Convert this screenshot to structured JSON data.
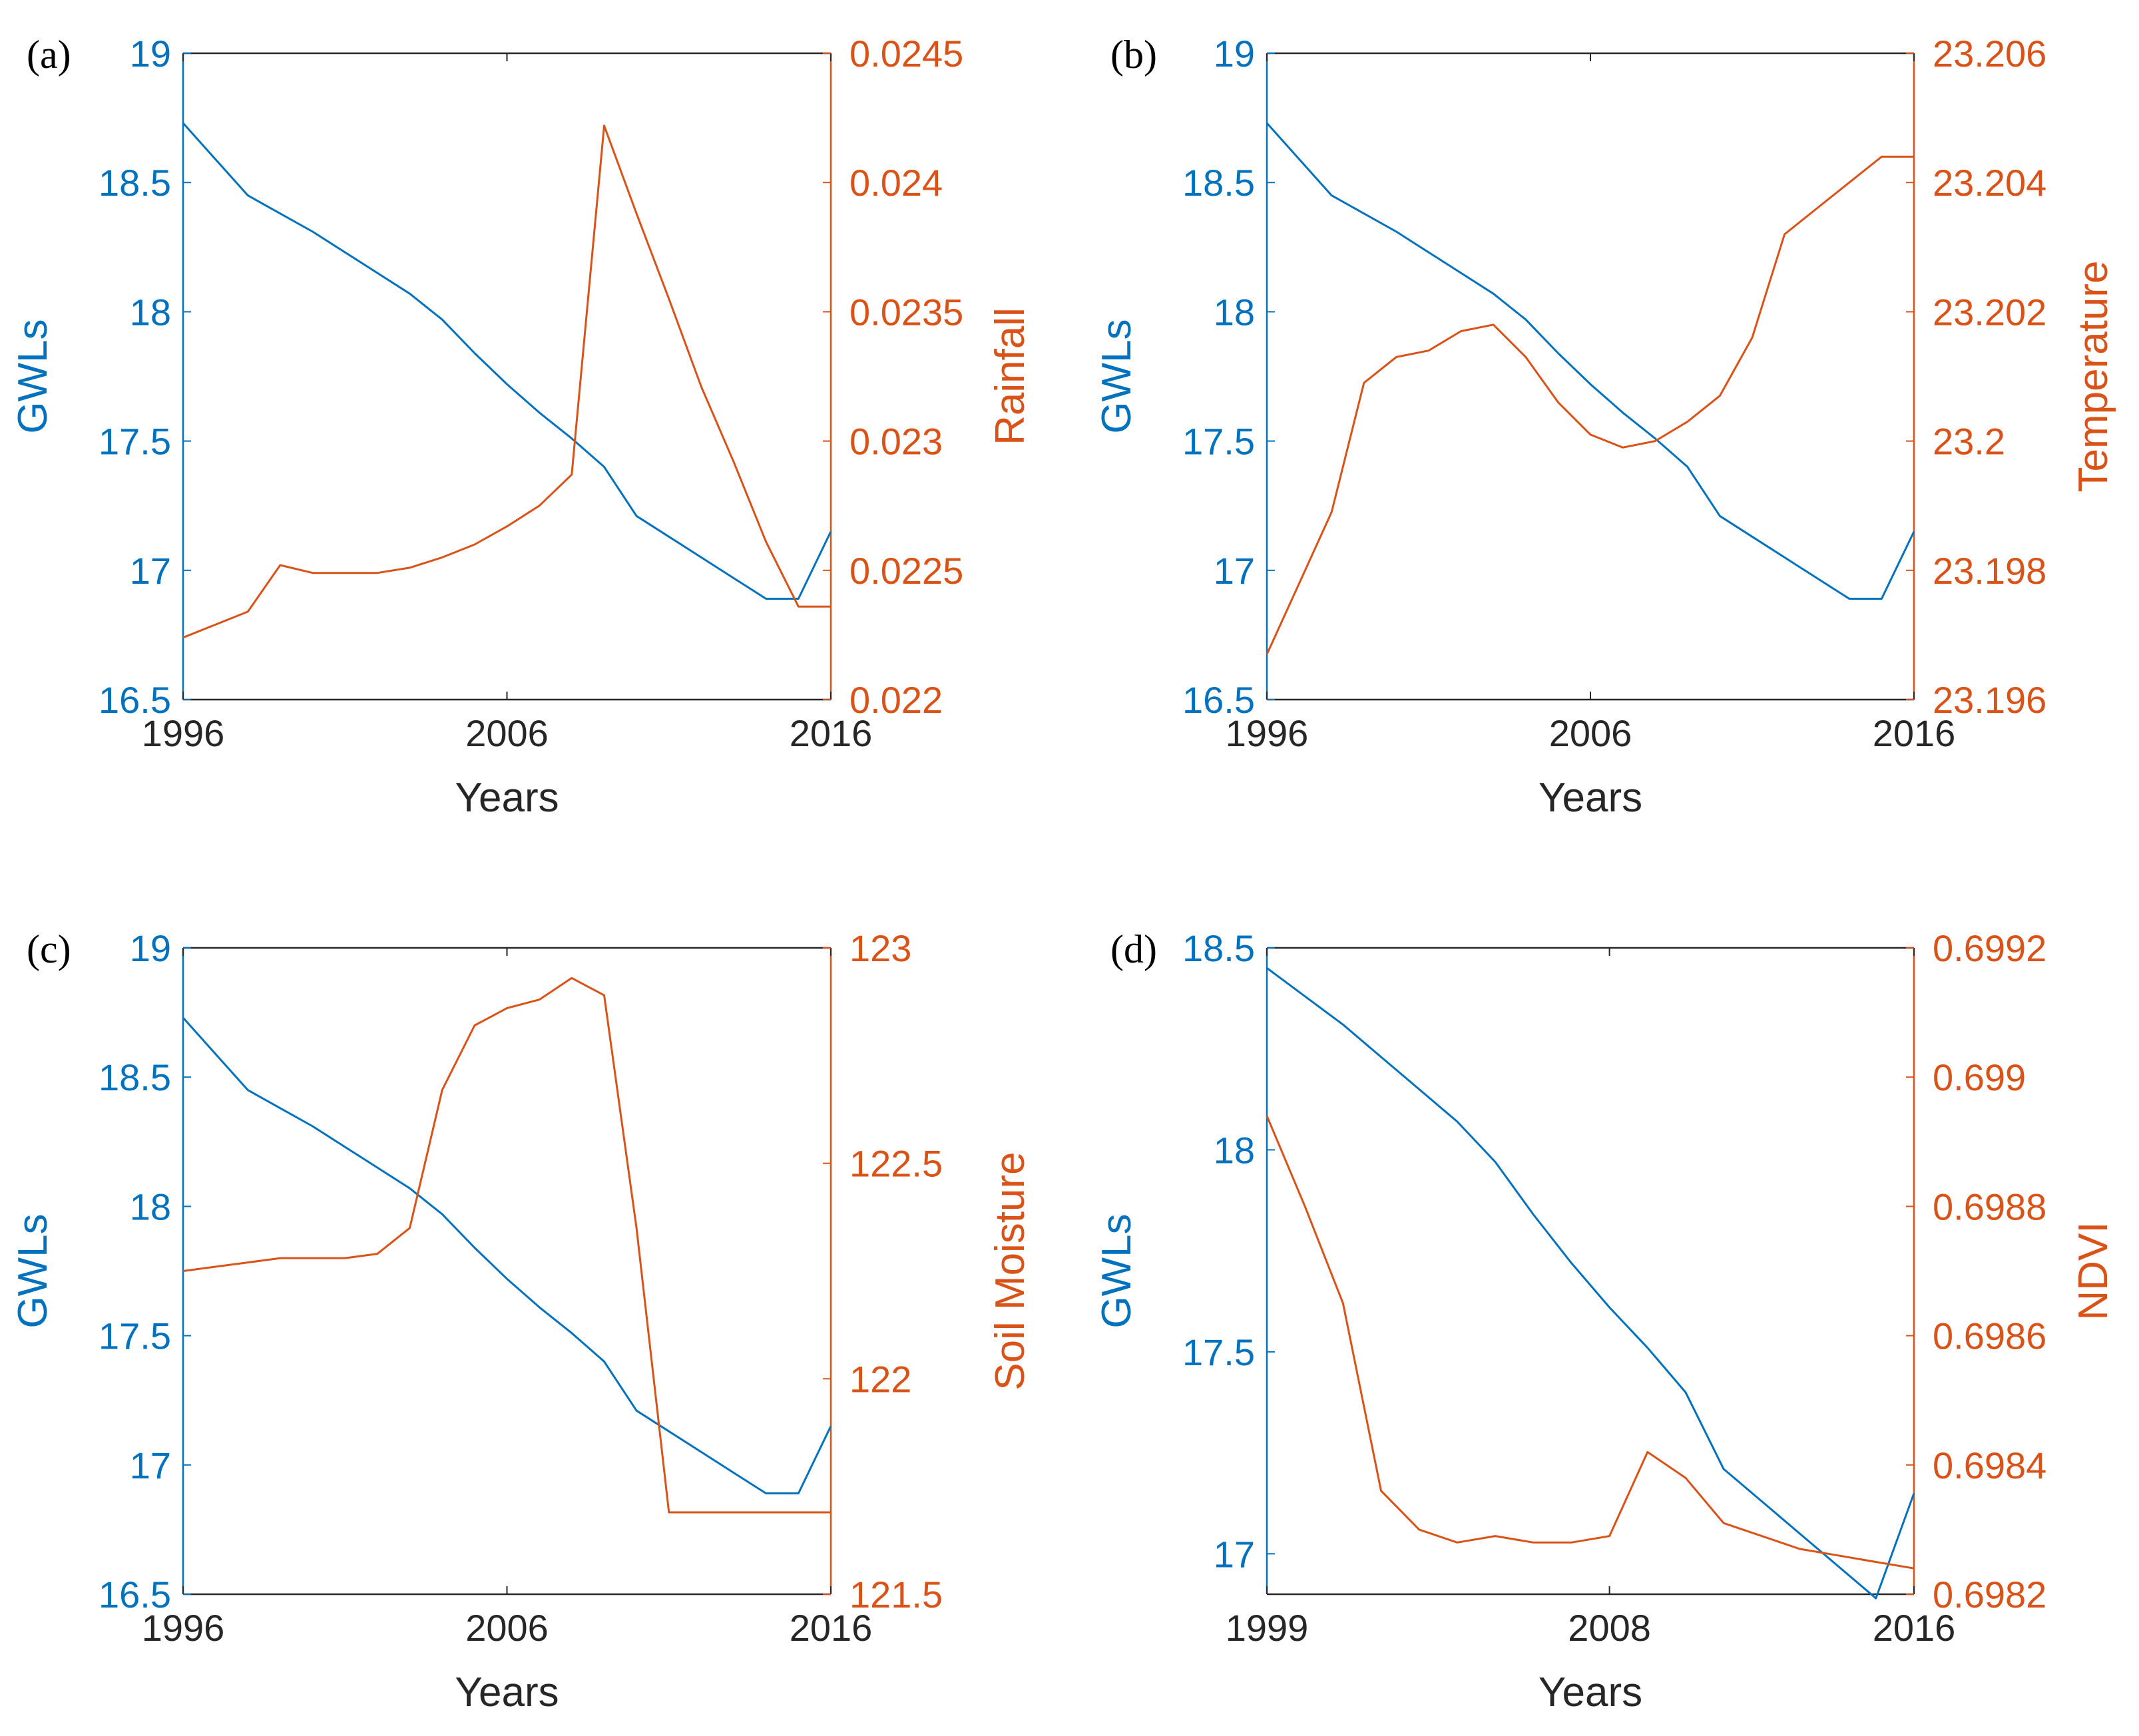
{
  "colors": {
    "left": "#0072BD",
    "right": "#D95319",
    "axis": "#262626"
  },
  "chart_data": [
    {
      "panel": "(a)",
      "type": "line",
      "xlabel": "Years",
      "ylabel_left": "GWLs",
      "ylabel_right": "Rainfall",
      "xlim": [
        1996,
        2016
      ],
      "xticks": [
        1996,
        2006,
        2016
      ],
      "xtick_labels": [
        "1996",
        "2006",
        "2016"
      ],
      "ylim_left": [
        16.5,
        19
      ],
      "yticks_left": [
        16.5,
        17,
        17.5,
        18,
        18.5,
        19
      ],
      "ytick_labels_left": [
        "16.5",
        "17",
        "17.5",
        "18",
        "18.5",
        "19"
      ],
      "ylim_right": [
        0.022,
        0.0245
      ],
      "yticks_right": [
        0.022,
        0.0225,
        0.023,
        0.0235,
        0.024,
        0.0245
      ],
      "ytick_labels_right": [
        "0.022",
        "0.0225",
        "0.023",
        "0.0235",
        "0.024",
        "0.0245"
      ],
      "series": [
        {
          "name": "GWLs",
          "axis": "left",
          "x": [
            1996,
            1997,
            1998,
            1999,
            2000,
            2001,
            2002,
            2003,
            2004,
            2005,
            2006,
            2007,
            2008,
            2009,
            2010,
            2011,
            2012,
            2013,
            2014,
            2015,
            2016
          ],
          "values": [
            18.73,
            18.59,
            18.45,
            18.38,
            18.31,
            18.23,
            18.15,
            18.07,
            17.97,
            17.84,
            17.72,
            17.61,
            17.51,
            17.4,
            17.21,
            17.13,
            17.05,
            16.97,
            16.89,
            16.89,
            17.15
          ]
        },
        {
          "name": "Rainfall",
          "axis": "right",
          "x": [
            1996,
            1997,
            1998,
            1999,
            2000,
            2001,
            2002,
            2003,
            2004,
            2005,
            2006,
            2007,
            2008,
            2009,
            2010,
            2011,
            2012,
            2013,
            2014,
            2015,
            2016
          ],
          "values": [
            0.02224,
            0.02229,
            0.02234,
            0.02252,
            0.02249,
            0.02249,
            0.02249,
            0.02251,
            0.02255,
            0.0226,
            0.02267,
            0.02275,
            0.02287,
            0.02422,
            0.02388,
            0.02355,
            0.02321,
            0.02292,
            0.02261,
            0.02236,
            0.02236
          ]
        }
      ]
    },
    {
      "panel": "(b)",
      "type": "line",
      "xlabel": "Years",
      "ylabel_left": "GWLs",
      "ylabel_right": "Temperature",
      "xlim": [
        1996,
        2016
      ],
      "xticks": [
        1996,
        2006,
        2016
      ],
      "xtick_labels": [
        "1996",
        "2006",
        "2016"
      ],
      "ylim_left": [
        16.5,
        19
      ],
      "yticks_left": [
        16.5,
        17,
        17.5,
        18,
        18.5,
        19
      ],
      "ytick_labels_left": [
        "16.5",
        "17",
        "17.5",
        "18",
        "18.5",
        "19"
      ],
      "ylim_right": [
        23.196,
        23.206
      ],
      "yticks_right": [
        23.196,
        23.198,
        23.2,
        23.202,
        23.204,
        23.206
      ],
      "ytick_labels_right": [
        "23.196",
        "23.198",
        "23.2",
        "23.202",
        "23.204",
        "23.206"
      ],
      "series": [
        {
          "name": "GWLs",
          "axis": "left",
          "x": [
            1996,
            1997,
            1998,
            1999,
            2000,
            2001,
            2002,
            2003,
            2004,
            2005,
            2006,
            2007,
            2008,
            2009,
            2010,
            2011,
            2012,
            2013,
            2014,
            2015,
            2016
          ],
          "values": [
            18.73,
            18.59,
            18.45,
            18.38,
            18.31,
            18.23,
            18.15,
            18.07,
            17.97,
            17.84,
            17.72,
            17.61,
            17.51,
            17.4,
            17.21,
            17.13,
            17.05,
            16.97,
            16.89,
            16.89,
            17.15
          ]
        },
        {
          "name": "Temperature",
          "axis": "right",
          "x": [
            1996,
            1997,
            1998,
            1999,
            2000,
            2001,
            2002,
            2003,
            2004,
            2005,
            2006,
            2007,
            2008,
            2009,
            2010,
            2011,
            2012,
            2013,
            2014,
            2015,
            2016
          ],
          "values": [
            23.1967,
            23.1978,
            23.1989,
            23.2009,
            23.2013,
            23.2014,
            23.2017,
            23.2018,
            23.2013,
            23.2006,
            23.2001,
            23.1999,
            23.2,
            23.2003,
            23.2007,
            23.2016,
            23.2032,
            23.2036,
            23.204,
            23.2044,
            23.2044
          ]
        }
      ]
    },
    {
      "panel": "(c)",
      "type": "line",
      "xlabel": "Years",
      "ylabel_left": "GWLs",
      "ylabel_right": "Soil Moisture",
      "xlim": [
        1996,
        2016
      ],
      "xticks": [
        1996,
        2006,
        2016
      ],
      "xtick_labels": [
        "1996",
        "2006",
        "2016"
      ],
      "ylim_left": [
        16.5,
        19
      ],
      "yticks_left": [
        16.5,
        17,
        17.5,
        18,
        18.5,
        19
      ],
      "ytick_labels_left": [
        "16.5",
        "17",
        "17.5",
        "18",
        "18.5",
        "19"
      ],
      "ylim_right": [
        121.5,
        123
      ],
      "yticks_right": [
        121.5,
        122,
        122.5,
        123
      ],
      "ytick_labels_right": [
        "121.5",
        "122",
        "122.5",
        "123"
      ],
      "series": [
        {
          "name": "GWLs",
          "axis": "left",
          "x": [
            1996,
            1997,
            1998,
            1999,
            2000,
            2001,
            2002,
            2003,
            2004,
            2005,
            2006,
            2007,
            2008,
            2009,
            2010,
            2011,
            2012,
            2013,
            2014,
            2015,
            2016
          ],
          "values": [
            18.73,
            18.59,
            18.45,
            18.38,
            18.31,
            18.23,
            18.15,
            18.07,
            17.97,
            17.84,
            17.72,
            17.61,
            17.51,
            17.4,
            17.21,
            17.13,
            17.05,
            16.97,
            16.89,
            16.89,
            17.15
          ]
        },
        {
          "name": "Soil Moisture",
          "axis": "right",
          "x": [
            1996,
            1997,
            1998,
            1999,
            2000,
            2001,
            2002,
            2003,
            2004,
            2005,
            2006,
            2007,
            2008,
            2009,
            2010,
            2011,
            2012,
            2013,
            2014,
            2015,
            2016
          ],
          "values": [
            122.25,
            122.26,
            122.27,
            122.28,
            122.28,
            122.28,
            122.29,
            122.35,
            122.67,
            122.82,
            122.86,
            122.88,
            122.93,
            122.89,
            122.35,
            121.69,
            121.69,
            121.69,
            121.69,
            121.69,
            121.69
          ]
        }
      ]
    },
    {
      "panel": "(d)",
      "type": "line",
      "xlabel": "Years",
      "ylabel_left": "GWLs",
      "ylabel_right": "NDVI",
      "xlim": [
        1999,
        2016
      ],
      "xticks": [
        1999,
        2008,
        2016
      ],
      "xtick_labels": [
        "1999",
        "2008",
        "2016"
      ],
      "ylim_left": [
        16.9,
        18.5
      ],
      "yticks_left": [
        17,
        17.5,
        18,
        18.5
      ],
      "ytick_labels_left": [
        "17",
        "17.5",
        "18",
        "18.5"
      ],
      "ylim_right": [
        0.6982,
        0.6992
      ],
      "yticks_right": [
        0.6982,
        0.6984,
        0.6986,
        0.6988,
        0.699,
        0.6992
      ],
      "ytick_labels_right": [
        "0.6982",
        "0.6984",
        "0.6986",
        "0.6988",
        "0.699",
        "0.6992"
      ],
      "series": [
        {
          "name": "GWLs",
          "axis": "left",
          "x": [
            1999,
            2000,
            2001,
            2002,
            2003,
            2004,
            2005,
            2006,
            2007,
            2008,
            2009,
            2010,
            2011,
            2012,
            2013,
            2014,
            2015,
            2016
          ],
          "values": [
            18.45,
            18.38,
            18.31,
            18.23,
            18.15,
            18.07,
            17.97,
            17.84,
            17.72,
            17.61,
            17.51,
            17.4,
            17.21,
            17.13,
            17.05,
            16.97,
            16.89,
            17.15
          ]
        },
        {
          "name": "NDVI",
          "axis": "right",
          "x": [
            1999,
            2000,
            2001,
            2002,
            2003,
            2004,
            2005,
            2006,
            2007,
            2008,
            2009,
            2010,
            2011,
            2012,
            2013,
            2014,
            2015,
            2016
          ],
          "values": [
            0.69894,
            0.6988,
            0.69865,
            0.69836,
            0.6983,
            0.69828,
            0.69829,
            0.69828,
            0.69828,
            0.69829,
            0.69842,
            0.69838,
            0.69831,
            0.69829,
            0.69827,
            0.69826,
            0.69825,
            0.69824
          ]
        }
      ]
    }
  ]
}
